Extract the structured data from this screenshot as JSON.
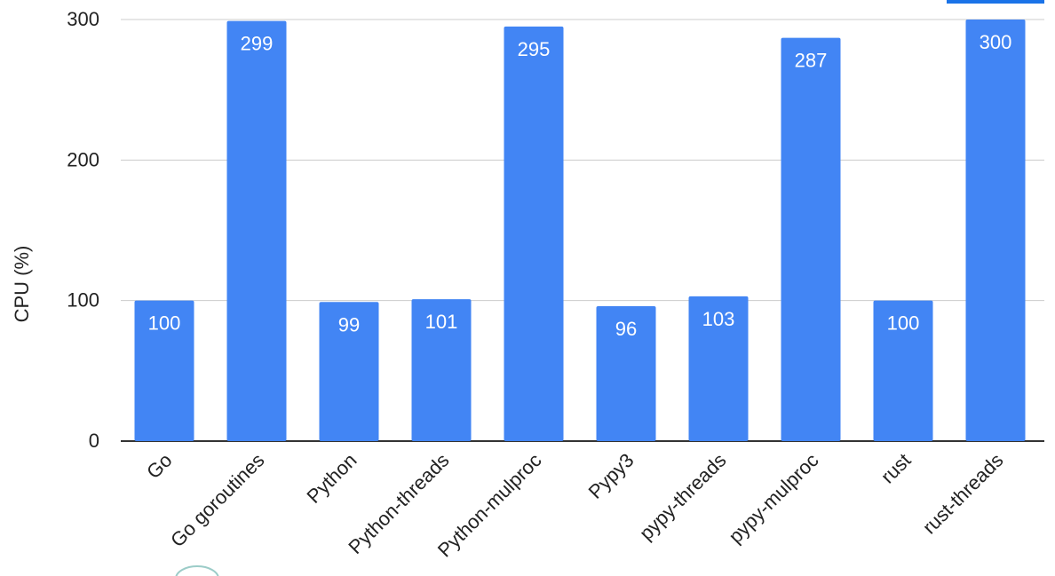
{
  "chart_data": {
    "type": "bar",
    "title": "",
    "xlabel": "",
    "ylabel": "CPU (%)",
    "ylim": [
      0,
      300
    ],
    "yticks": [
      0,
      100,
      200,
      300
    ],
    "grid": true,
    "categories": [
      "Go",
      "Go goroutines",
      "Python",
      "Python-threads",
      "Python-mulproc",
      "Pypy3",
      "pypy-threads",
      "pypy-mulproc",
      "rust",
      "rust-threads"
    ],
    "values": [
      100,
      299,
      99,
      101,
      295,
      96,
      103,
      287,
      100,
      300
    ],
    "data_labels": [
      "100",
      "299",
      "99",
      "101",
      "295",
      "96",
      "103",
      "287",
      "100",
      "300"
    ],
    "colors": {
      "bar": "#4285f4",
      "grid": "#cccccc",
      "axis": "#333333",
      "accent": "#1a73e8"
    }
  }
}
